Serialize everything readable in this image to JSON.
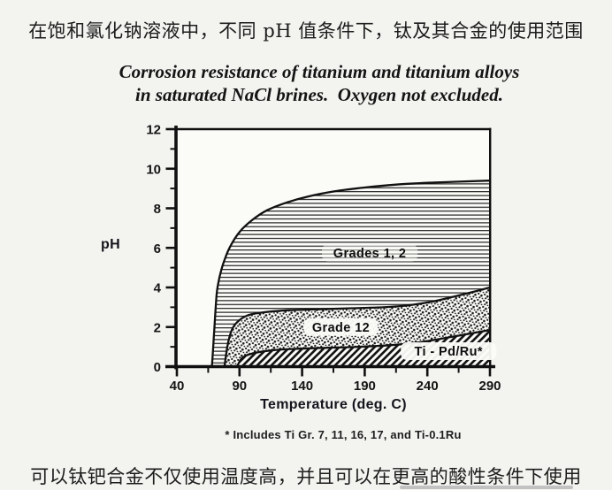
{
  "page": {
    "top_caption_zh": "在饱和氯化钠溶液中，不同 pH 值条件下，钛及其合金的使用范围",
    "bottom_caption_zh": "可以钛钯合金不仅使用温度高，并且可以在更高的酸性条件下使用"
  },
  "figure": {
    "title_line1": "Corrosion resistance of titanium and titanium alloys",
    "title_line2": "in saturated NaCl brines.  Oxygen not excluded.",
    "footnote": "* Includes Ti Gr. 7, 11, 16, 17, and Ti-0.1Ru"
  },
  "chart_data": {
    "type": "area",
    "title": "Corrosion resistance of titanium and titanium alloys in saturated NaCl brines. Oxygen not excluded.",
    "xlabel": "Temperature (deg. C)",
    "ylabel": "pH",
    "xlim": [
      40,
      290
    ],
    "ylim": [
      0,
      12
    ],
    "xticks_major": [
      40,
      90,
      140,
      190,
      240,
      290
    ],
    "xticks_minor": [
      65,
      115,
      165,
      215,
      265
    ],
    "yticks_major": [
      0,
      2,
      4,
      6,
      8,
      10,
      12
    ],
    "yticks_minor": [
      1,
      3,
      5,
      7,
      9,
      11
    ],
    "grid": false,
    "regions": [
      {
        "name": "Grades 1, 2",
        "pattern": "horizontal-lines",
        "label_bg": "faint",
        "label_pos": {
          "T": 194,
          "pH": 5.75
        },
        "boundary": [
          [
            68,
            0
          ],
          [
            69,
            1.0
          ],
          [
            70,
            2.0
          ],
          [
            71,
            3.0
          ],
          [
            72,
            3.8
          ],
          [
            74,
            4.5
          ],
          [
            77,
            5.2
          ],
          [
            82,
            6.0
          ],
          [
            90,
            6.8
          ],
          [
            100,
            7.4
          ],
          [
            112,
            7.9
          ],
          [
            128,
            8.3
          ],
          [
            145,
            8.6
          ],
          [
            165,
            8.85
          ],
          [
            190,
            9.05
          ],
          [
            215,
            9.2
          ],
          [
            245,
            9.3
          ],
          [
            290,
            9.4
          ]
        ]
      },
      {
        "name": "Grade 12",
        "pattern": "stipple",
        "label_bg": "solid",
        "label_pos": {
          "T": 171,
          "pH": 2.0
        },
        "boundary": [
          [
            78,
            0
          ],
          [
            80,
            0.9
          ],
          [
            82,
            1.5
          ],
          [
            85,
            2.0
          ],
          [
            90,
            2.35
          ],
          [
            97,
            2.6
          ],
          [
            110,
            2.75
          ],
          [
            130,
            2.85
          ],
          [
            155,
            2.9
          ],
          [
            180,
            2.95
          ],
          [
            205,
            3.0
          ],
          [
            225,
            3.1
          ],
          [
            245,
            3.3
          ],
          [
            262,
            3.55
          ],
          [
            278,
            3.8
          ],
          [
            290,
            4.0
          ]
        ]
      },
      {
        "name": "Ti - Pd/Ru*",
        "pattern": "diagonal-hatch",
        "label_bg": "solid",
        "label_pos": {
          "T": 257,
          "pH": 0.78
        },
        "boundary": [
          [
            88,
            0
          ],
          [
            91,
            0.35
          ],
          [
            95,
            0.55
          ],
          [
            103,
            0.7
          ],
          [
            115,
            0.82
          ],
          [
            135,
            0.9
          ],
          [
            160,
            0.95
          ],
          [
            185,
            1.0
          ],
          [
            210,
            1.08
          ],
          [
            230,
            1.2
          ],
          [
            250,
            1.4
          ],
          [
            268,
            1.6
          ],
          [
            290,
            1.85
          ]
        ]
      }
    ]
  }
}
